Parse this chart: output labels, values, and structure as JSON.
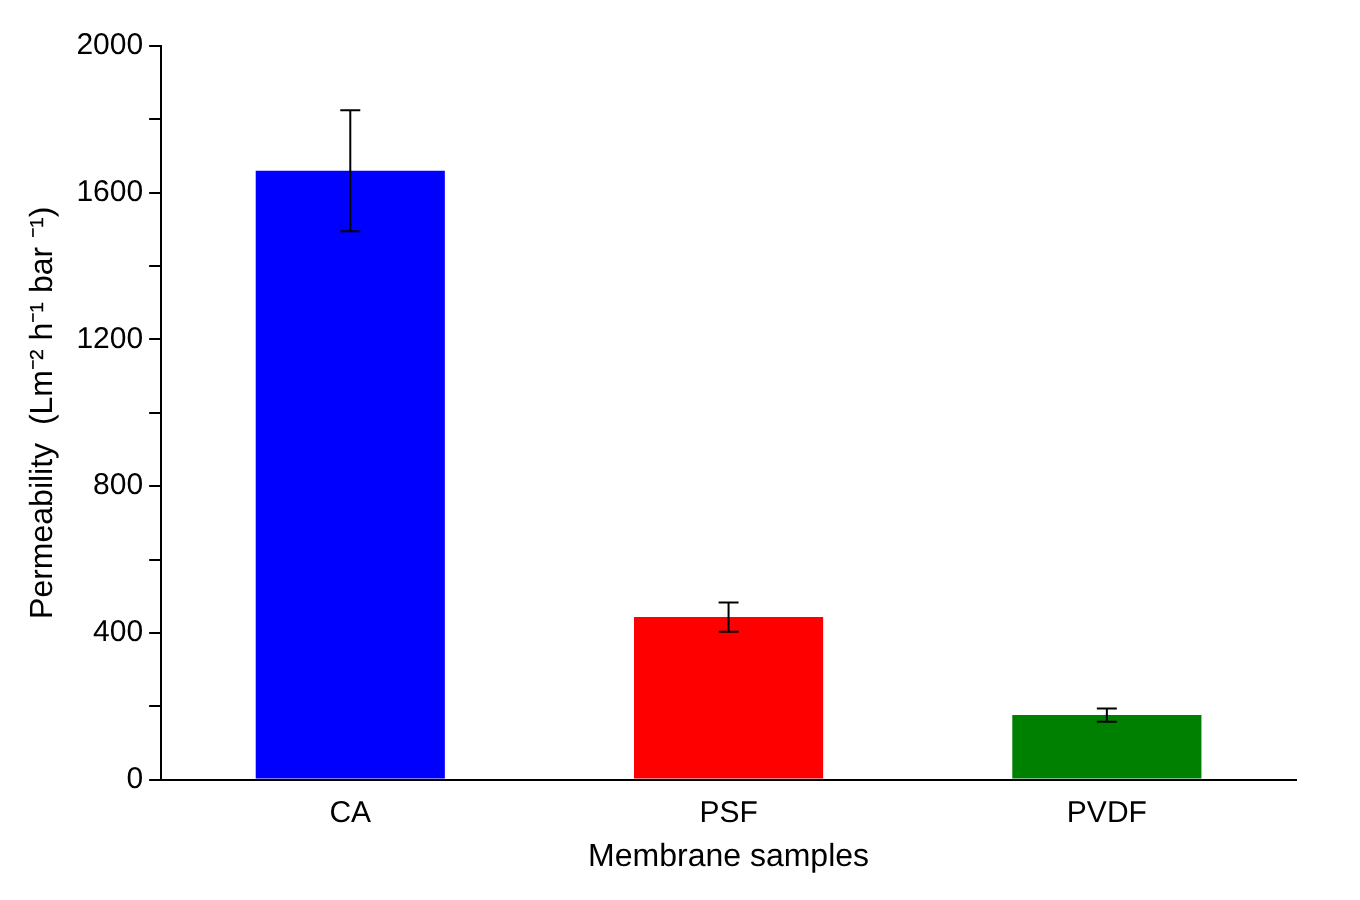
{
  "chart_data": {
    "type": "bar",
    "xlabel": "Membrane samples",
    "ylabel": "Permeability  (Lm⁻² h⁻¹ bar ⁻¹)",
    "categories": [
      "CA",
      "PSF",
      "PVDF"
    ],
    "values": [
      1660,
      443,
      176
    ],
    "colors": [
      "#0000ff",
      "#ff0000",
      "#008000"
    ],
    "errors": [
      165,
      40,
      18
    ],
    "ylim": [
      0,
      2000
    ],
    "yticks": [
      0,
      {
        "value": 200,
        "label": null
      },
      400,
      {
        "value": 600,
        "label": null
      },
      800,
      {
        "value": 1000,
        "label": null
      },
      1200,
      {
        "value": 1400,
        "label": null
      },
      1600,
      {
        "value": 1800,
        "label": null
      },
      2000
    ],
    "grid": false,
    "legend": false
  }
}
